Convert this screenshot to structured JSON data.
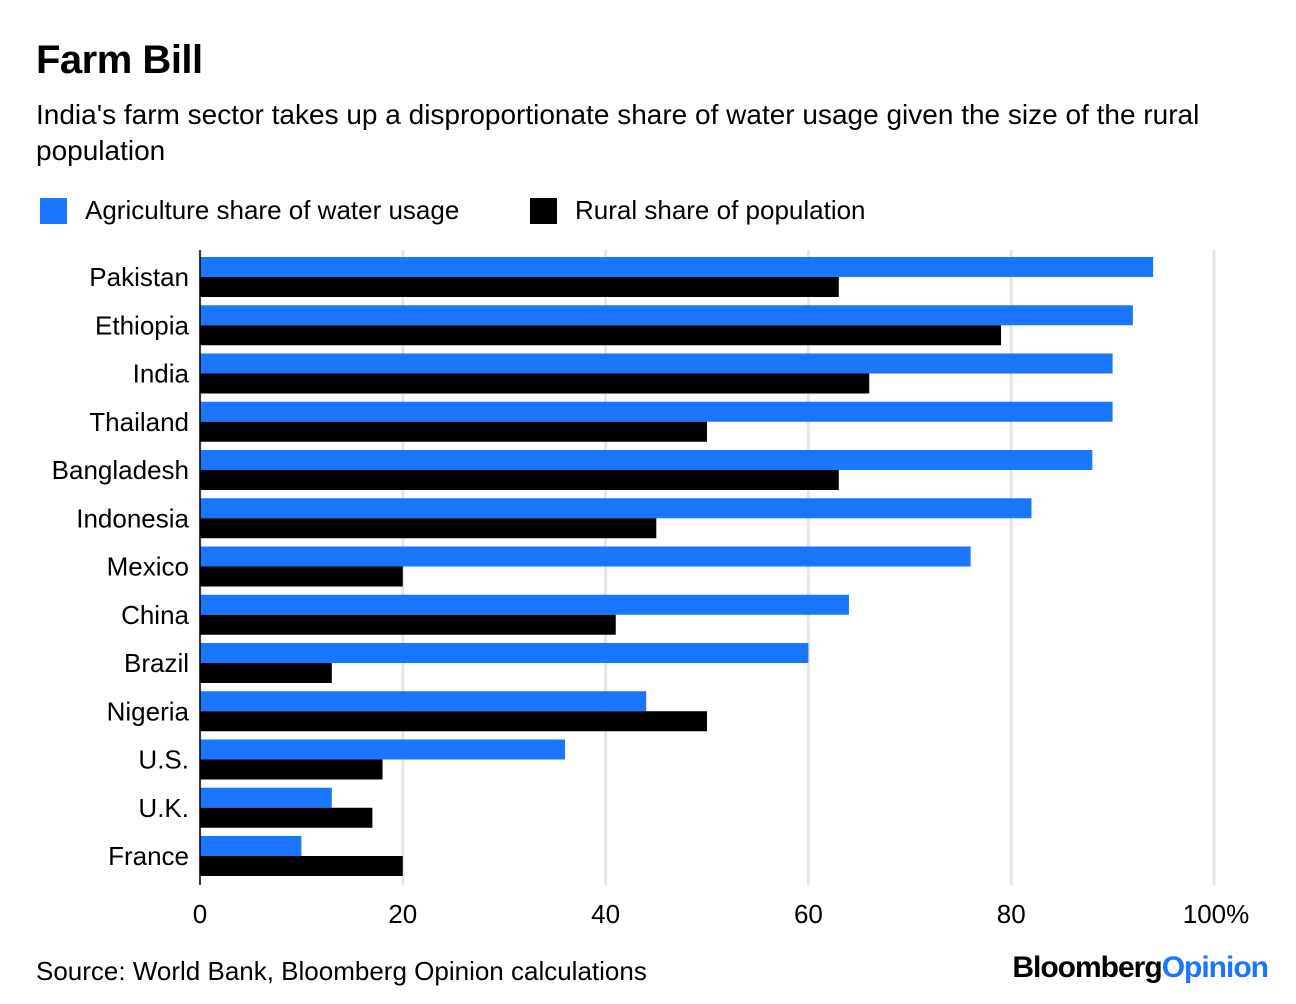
{
  "header": {
    "title": "Farm Bill",
    "subtitle": "India's farm sector takes up a disproportionate share of water usage given the size of the rural population"
  },
  "legend": {
    "items": [
      {
        "label": "Agriculture share of water usage",
        "color": "#1a75ff"
      },
      {
        "label": "Rural share of population",
        "color": "#000000"
      }
    ]
  },
  "footer": {
    "source": "Source: World Bank, Bloomberg Opinion calculations",
    "brand_part1": "Bloomberg",
    "brand_part2": "Opinion"
  },
  "chart_data": {
    "type": "bar",
    "orientation": "horizontal",
    "categories": [
      "Pakistan",
      "Ethiopia",
      "India",
      "Thailand",
      "Bangladesh",
      "Indonesia",
      "Mexico",
      "China",
      "Brazil",
      "Nigeria",
      "U.S.",
      "U.K.",
      "France"
    ],
    "series": [
      {
        "name": "Agriculture share of water usage",
        "color": "#1a75ff",
        "values": [
          94,
          92,
          90,
          90,
          88,
          82,
          76,
          64,
          60,
          44,
          36,
          13,
          10
        ]
      },
      {
        "name": "Rural share of population",
        "color": "#000000",
        "values": [
          63,
          79,
          66,
          50,
          63,
          45,
          20,
          41,
          13,
          50,
          18,
          17,
          20
        ]
      }
    ],
    "xlim": [
      0,
      100
    ],
    "xticks": [
      0,
      20,
      40,
      60,
      80,
      100
    ],
    "xtick_labels": [
      "0",
      "20",
      "40",
      "60",
      "80",
      "100%"
    ],
    "grid": true,
    "legend_position": "top-left"
  }
}
